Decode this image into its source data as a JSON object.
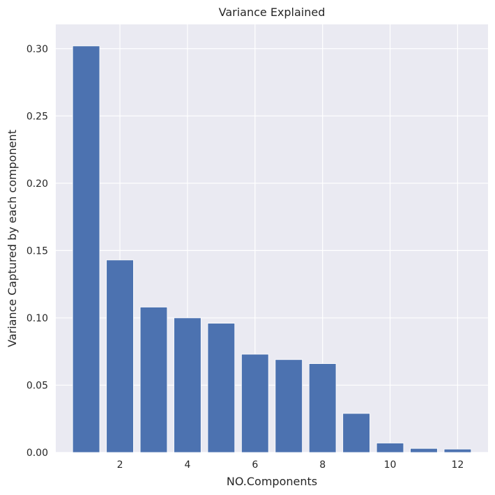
{
  "chart_data": {
    "type": "bar",
    "title": "Variance Explained",
    "xlabel": "NO.Components",
    "ylabel": "Variance Captured by each component",
    "x": [
      1,
      2,
      3,
      4,
      5,
      6,
      7,
      8,
      9,
      10,
      11,
      12
    ],
    "values": [
      0.302,
      0.143,
      0.108,
      0.1,
      0.096,
      0.073,
      0.069,
      0.066,
      0.029,
      0.007,
      0.003,
      0.0025
    ],
    "xlim": [
      0.1,
      12.9
    ],
    "ylim": [
      0,
      0.318
    ],
    "xticks": [
      "2",
      "4",
      "6",
      "8",
      "10",
      "12"
    ],
    "yticks": [
      "0.00",
      "0.05",
      "0.10",
      "0.15",
      "0.20",
      "0.25",
      "0.30"
    ],
    "grid": true,
    "colors": {
      "bar": "#4c72b0",
      "background": "#eaeaf2",
      "grid": "#ffffff",
      "text": "#262626"
    }
  }
}
